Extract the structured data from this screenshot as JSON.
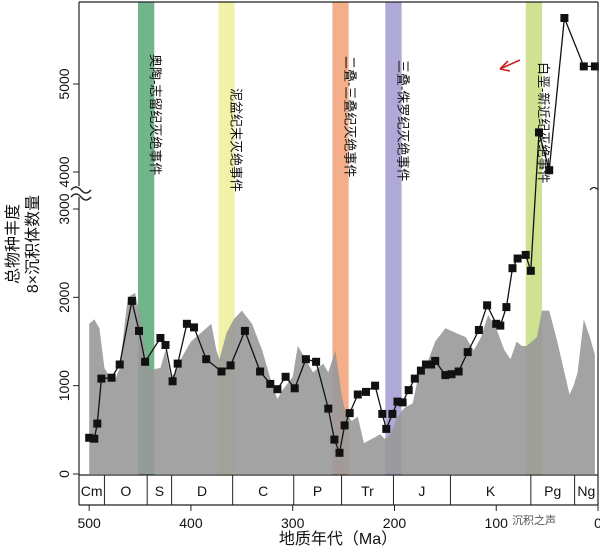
{
  "chart_data": {
    "type": "line",
    "xlabel": "地质年代（Ma）",
    "ylabel": [
      "总物种丰度",
      "8×沉积体数量"
    ],
    "x_reversed": true,
    "xlim": [
      510,
      0
    ],
    "ylim_lower": [
      0,
      3000
    ],
    "ylim_upper": [
      3800,
      5900
    ],
    "axis_break": true,
    "x_ticks": [
      500,
      400,
      300,
      200,
      100,
      0
    ],
    "x_tick_labels": [
      "500",
      "400",
      "300",
      "200",
      "100",
      "0"
    ],
    "y_ticks_lower": [
      0,
      1000,
      2000,
      3000
    ],
    "y_tick_labels_lower": [
      "0",
      "1000",
      "2000",
      "3000"
    ],
    "y_ticks_upper": [
      4000,
      5000
    ],
    "y_tick_labels_upper": [
      "4000",
      "5000"
    ],
    "series": [
      {
        "kind": "line-markers",
        "color": "#111111",
        "x": [
          500,
          495,
          492,
          488,
          478,
          470,
          458,
          451,
          445,
          430,
          425,
          418,
          413,
          404,
          397,
          385,
          370,
          361,
          347,
          332,
          322,
          315,
          307,
          298,
          287,
          277,
          265,
          259,
          254,
          249,
          244,
          236,
          228,
          219,
          212,
          208,
          202,
          197,
          192,
          186,
          180,
          174,
          169,
          164,
          160,
          150,
          144,
          137,
          128,
          117,
          109,
          100,
          96,
          90,
          84,
          79,
          71,
          66,
          58,
          48,
          33,
          14,
          3
        ],
        "y": [
          410,
          400,
          570,
          1080,
          1090,
          1240,
          1960,
          1620,
          1270,
          1540,
          1460,
          1050,
          1250,
          1700,
          1660,
          1300,
          1160,
          1230,
          1620,
          1160,
          1020,
          960,
          1100,
          970,
          1300,
          1270,
          740,
          390,
          240,
          550,
          690,
          900,
          930,
          1000,
          680,
          510,
          680,
          820,
          810,
          950,
          1080,
          1170,
          1240,
          1240,
          1280,
          1120,
          1130,
          1160,
          1380,
          1630,
          1910,
          1700,
          1680,
          1890,
          2330,
          2440,
          2480,
          2300,
          4450,
          4020,
          5750,
          5200,
          5200
        ]
      },
      {
        "kind": "filled-area",
        "color": "#999999",
        "x": [
          500,
          495,
          490,
          485,
          480,
          475,
          470,
          462,
          455,
          450,
          445,
          440,
          430,
          425,
          420,
          415,
          410,
          400,
          390,
          380,
          375,
          372,
          365,
          358,
          350,
          340,
          330,
          320,
          315,
          310,
          300,
          295,
          290,
          280,
          270,
          265,
          258,
          252,
          248,
          242,
          236,
          230,
          222,
          214,
          210,
          206,
          202,
          197,
          190,
          182,
          175,
          168,
          160,
          150,
          140,
          130,
          122,
          115,
          108,
          100,
          92,
          86,
          80,
          75,
          70,
          65,
          60,
          55,
          48,
          40,
          33,
          28,
          24,
          20,
          14,
          8,
          3,
          3
        ],
        "y": [
          1700,
          1750,
          1650,
          1200,
          1100,
          1050,
          1200,
          2000,
          2050,
          1800,
          1400,
          1180,
          1200,
          1400,
          1100,
          1150,
          1300,
          1500,
          1600,
          1700,
          1400,
          1300,
          1600,
          1750,
          1850,
          1700,
          1400,
          1000,
          850,
          950,
          1100,
          1450,
          1350,
          1150,
          1250,
          1150,
          1400,
          900,
          700,
          600,
          650,
          350,
          400,
          450,
          400,
          420,
          500,
          650,
          750,
          800,
          1200,
          1250,
          1500,
          1650,
          1600,
          1550,
          1400,
          1550,
          1800,
          1650,
          1400,
          1300,
          1500,
          1450,
          1450,
          1500,
          1550,
          1850,
          1850,
          1500,
          1150,
          900,
          1000,
          1150,
          1750,
          1550,
          1350,
          0
        ]
      }
    ],
    "extinction_events": [
      {
        "label": "奥陶-志留纪灭绝事件",
        "x_start": 452,
        "x_end": 436,
        "color": "#5aa877"
      },
      {
        "label": "泥盆纪末灭绝事件",
        "x_start": 373,
        "x_end": 357,
        "color": "#eeee99"
      },
      {
        "label": "二叠-三叠纪灭绝事件",
        "x_start": 261,
        "x_end": 245,
        "color": "#f2a076"
      },
      {
        "label": "三叠-侏罗纪灭绝事件",
        "x_start": 209,
        "x_end": 193,
        "color": "#a09ad0"
      },
      {
        "label": "白垩-新近纪灭绝事件",
        "x_start": 71,
        "x_end": 55,
        "color": "#c6dd7f"
      }
    ],
    "periods": [
      {
        "label": "Cm",
        "x_start": 510,
        "x_end": 485
      },
      {
        "label": "O",
        "x_start": 485,
        "x_end": 443
      },
      {
        "label": "S",
        "x_start": 443,
        "x_end": 419
      },
      {
        "label": "D",
        "x_start": 419,
        "x_end": 359
      },
      {
        "label": "C",
        "x_start": 359,
        "x_end": 299
      },
      {
        "label": "P",
        "x_start": 299,
        "x_end": 252
      },
      {
        "label": "Tr",
        "x_start": 252,
        "x_end": 201
      },
      {
        "label": "J",
        "x_start": 201,
        "x_end": 145
      },
      {
        "label": "K",
        "x_start": 145,
        "x_end": 66
      },
      {
        "label": "Pg",
        "x_start": 66,
        "x_end": 23
      },
      {
        "label": "Ng",
        "x_start": 23,
        "x_end": 0
      }
    ],
    "annotation_arrow_color": "#cc2222",
    "grid": false
  },
  "watermark": "沉积之声"
}
